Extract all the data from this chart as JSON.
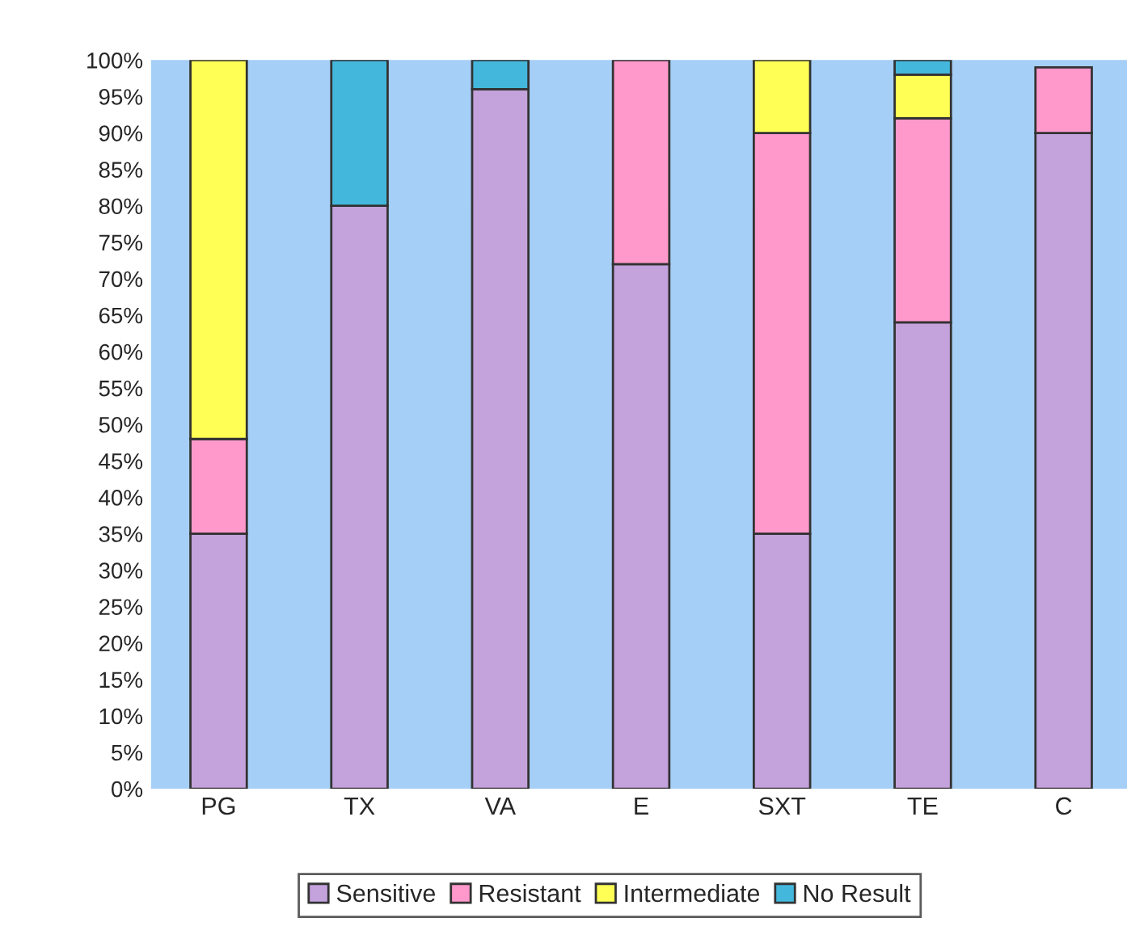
{
  "chart_data": {
    "type": "bar",
    "stacked": true,
    "categories": [
      "PG",
      "TX",
      "VA",
      "E",
      "SXT",
      "TE",
      "C"
    ],
    "series": [
      {
        "name": "Sensitive",
        "color": "#c4a2dc",
        "values": [
          35,
          80,
          96,
          72,
          35,
          64,
          90
        ]
      },
      {
        "name": "Resistant",
        "color": "#ff99cc",
        "values": [
          13,
          null,
          null,
          28,
          55,
          28,
          9
        ]
      },
      {
        "name": "Intermediate",
        "color": "#ffff55",
        "values": [
          52,
          null,
          null,
          null,
          10,
          6,
          null
        ]
      },
      {
        "name": "No Result",
        "color": "#44b8dc",
        "values": [
          null,
          20,
          4,
          null,
          null,
          2,
          null
        ]
      }
    ],
    "ylim": [
      0,
      100
    ],
    "yticks": [
      {
        "value": 0,
        "label": "0%"
      },
      {
        "value": 5,
        "label": "5%"
      },
      {
        "value": 10,
        "label": "10%"
      },
      {
        "value": 15,
        "label": "15%"
      },
      {
        "value": 20,
        "label": "20%"
      },
      {
        "value": 25,
        "label": "25%"
      },
      {
        "value": 30,
        "label": "30%"
      },
      {
        "value": 35,
        "label": "35%"
      },
      {
        "value": 40,
        "label": "40%"
      },
      {
        "value": 45,
        "label": "45%"
      },
      {
        "value": 50,
        "label": "50%"
      },
      {
        "value": 55,
        "label": "55%"
      },
      {
        "value": 60,
        "label": "60%"
      },
      {
        "value": 65,
        "label": "65%"
      },
      {
        "value": 70,
        "label": "70%"
      },
      {
        "value": 75,
        "label": "75%"
      },
      {
        "value": 80,
        "label": "80%"
      },
      {
        "value": 85,
        "label": "85%"
      },
      {
        "value": 90,
        "label": "90%"
      },
      {
        "value": 95,
        "label": "95%"
      },
      {
        "value": 100,
        "label": "100%"
      }
    ],
    "grid": false,
    "legend": "bottom"
  }
}
